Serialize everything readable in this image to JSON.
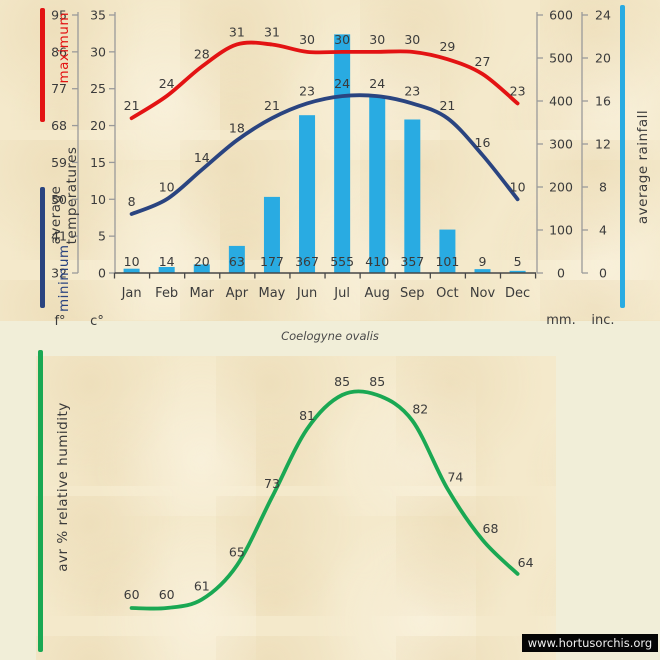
{
  "page": {
    "species_title": "Coelogyne ovalis",
    "website": "www.hortusorchis.org"
  },
  "colors": {
    "page_bg": "#f1eed8",
    "panel": "#f4e9cb",
    "max_line": "#e31313",
    "min_line": "#2a4480",
    "rain_bar": "#29abe2",
    "humidity_line": "#1aa853",
    "text": "#3b3b3b",
    "axis": "#9a9a9a",
    "axis_dark": "#474747",
    "watermark_bg": "#050505",
    "watermark_text": "#efefef"
  },
  "legends": {
    "minimum": "minimum",
    "average_temperatures": "average temperatures",
    "maximum": "maximum",
    "average_rainfall": "average rainfall",
    "humidity": "avr % relative humidity"
  },
  "axes": {
    "fahrenheit": {
      "unit": "f°",
      "ticks": [
        95,
        86,
        77,
        68,
        59,
        50,
        41,
        32
      ]
    },
    "celsius": {
      "unit": "c°",
      "ticks": [
        35,
        30,
        25,
        20,
        15,
        10,
        5,
        0
      ]
    },
    "millimeters": {
      "unit": "mm.",
      "ticks": [
        600,
        500,
        400,
        300,
        200,
        100,
        0
      ]
    },
    "inches": {
      "unit": "inc.",
      "ticks": [
        24,
        20,
        16,
        12,
        8,
        4,
        0
      ]
    }
  },
  "chart_data": [
    {
      "type": "bar",
      "subtype": "bar+line combo, monthly climate",
      "categories": [
        "Jan",
        "Feb",
        "Mar",
        "Apr",
        "May",
        "Jun",
        "Jul",
        "Aug",
        "Sep",
        "Oct",
        "Nov",
        "Dec"
      ],
      "series": [
        {
          "name": "maximum",
          "kind": "line",
          "unit": "°C",
          "color_key": "max_line",
          "values": [
            21,
            24,
            28,
            31,
            31,
            30,
            30,
            30,
            30,
            29,
            27,
            23
          ]
        },
        {
          "name": "minimum",
          "kind": "line",
          "unit": "°C",
          "color_key": "min_line",
          "values": [
            8,
            10,
            14,
            18,
            21,
            23,
            24,
            24,
            23,
            21,
            16,
            10
          ]
        },
        {
          "name": "average rainfall",
          "kind": "bar",
          "unit": "mm",
          "color_key": "rain_bar",
          "values": [
            10,
            14,
            20,
            63,
            177,
            367,
            555,
            410,
            357,
            101,
            9,
            5
          ]
        }
      ],
      "ylabel_left": "average temperatures (f° / c°)",
      "ylabel_right": "average rainfall (mm. / inc.)",
      "celsius_range": [
        0,
        35
      ],
      "mm_range": [
        0,
        600
      ],
      "grid": false,
      "legend_position": "vertical text left and right of plot"
    },
    {
      "type": "line",
      "title": "avr % relative humidity",
      "categories": [
        "Jan",
        "Feb",
        "Mar",
        "Apr",
        "May",
        "Jun",
        "Jul",
        "Aug",
        "Sep",
        "Oct",
        "Nov",
        "Dec"
      ],
      "series": [
        {
          "name": "avr % relative humidity",
          "kind": "line",
          "unit": "%",
          "color_key": "humidity_line",
          "values": [
            60,
            60,
            61,
            65,
            73,
            81,
            85,
            85,
            82,
            74,
            68,
            64
          ]
        }
      ],
      "grid": false,
      "axes_visible": false
    }
  ]
}
